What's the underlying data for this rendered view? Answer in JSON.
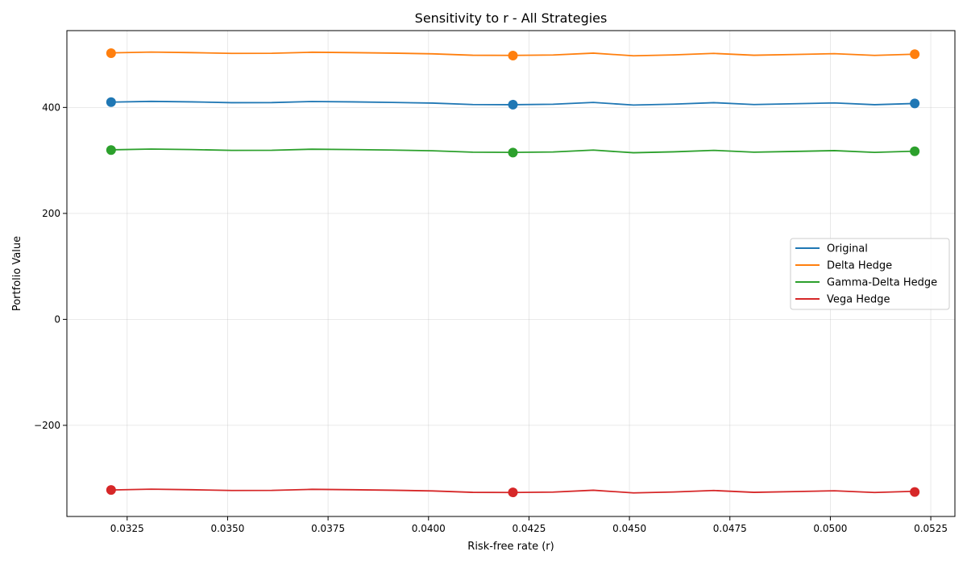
{
  "chart_data": {
    "type": "line",
    "title": "Sensitivity to r - All Strategies",
    "xlabel": "Risk-free rate (r)",
    "ylabel": "Portfolio Value",
    "xlim": [
      0.031,
      0.0531
    ],
    "ylim": [
      -372,
      545
    ],
    "x_ticks": [
      0.0325,
      0.035,
      0.0375,
      0.04,
      0.0425,
      0.045,
      0.0475,
      0.05,
      0.0525
    ],
    "x_tick_labels": [
      "0.0325",
      "0.0350",
      "0.0375",
      "0.0400",
      "0.0425",
      "0.0450",
      "0.0475",
      "0.0500",
      "0.0525"
    ],
    "y_ticks": [
      -200,
      0,
      200,
      400
    ],
    "y_tick_labels": [
      "−200",
      "0",
      "200",
      "400"
    ],
    "grid": true,
    "legend_position": "center-right",
    "x": [
      0.0321,
      0.0331,
      0.0341,
      0.0351,
      0.0361,
      0.0371,
      0.0381,
      0.0391,
      0.0401,
      0.0411,
      0.0421,
      0.0431,
      0.0441,
      0.0451,
      0.0461,
      0.0471,
      0.0481,
      0.0491,
      0.0501,
      0.0511,
      0.0521
    ],
    "marker_x": [
      0.0321,
      0.0421,
      0.0521
    ],
    "series": [
      {
        "name": "Original",
        "color": "#1f77b4",
        "values": [
          410,
          411.5,
          410.5,
          409,
          409.2,
          411.2,
          410.5,
          409.5,
          408.2,
          405.5,
          405.2,
          406,
          409.5,
          404.5,
          406.2,
          409,
          405.5,
          407,
          408.5,
          405.2,
          407.5
        ],
        "marker_values": [
          410,
          405.2,
          407.5
        ]
      },
      {
        "name": "Delta Hedge",
        "color": "#ff7f0e",
        "values": [
          503,
          504.5,
          503.5,
          502,
          502.2,
          504.2,
          503.5,
          502.5,
          501.2,
          498.5,
          498.2,
          499,
          502.5,
          497.5,
          499.2,
          502,
          498.5,
          500,
          501.5,
          498.2,
          500.5
        ],
        "marker_values": [
          502.5,
          497.8,
          500.5
        ]
      },
      {
        "name": "Gamma-Delta Hedge",
        "color": "#2ca02c",
        "values": [
          320,
          321.5,
          320.5,
          319,
          319.2,
          321.2,
          320.5,
          319.5,
          318.2,
          315.5,
          315.2,
          316,
          319.5,
          314.5,
          316.2,
          319,
          315.5,
          317,
          318.5,
          315.2,
          317.5
        ],
        "marker_values": [
          319.5,
          314.8,
          317.2
        ]
      },
      {
        "name": "Vega Hedge",
        "color": "#d62728",
        "values": [
          -322,
          -320.5,
          -321.5,
          -323,
          -322.8,
          -320.8,
          -321.5,
          -322.5,
          -323.8,
          -326.5,
          -326.8,
          -326,
          -322.5,
          -327.5,
          -325.8,
          -323,
          -326.5,
          -325,
          -323.5,
          -326.8,
          -324.5
        ],
        "marker_values": [
          -322,
          -326.5,
          -325.8
        ]
      }
    ]
  }
}
